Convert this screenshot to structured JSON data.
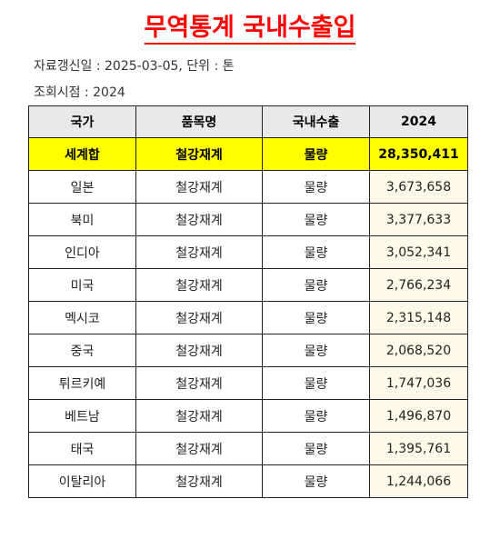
{
  "title": "무역통계 국내수출입",
  "meta": {
    "updated": "자료갱신일 : 2025-03-05, 단위 : 톤",
    "query_time": "조회시점 : 2024"
  },
  "table": {
    "headers": [
      "국가",
      "품목명",
      "국내수출",
      "2024"
    ],
    "total": {
      "country": "세계합",
      "item": "철강재계",
      "type": "물량",
      "value": "28,350,411"
    },
    "rows": [
      {
        "country": "일본",
        "item": "철강재계",
        "type": "물량",
        "value": "3,673,658"
      },
      {
        "country": "북미",
        "item": "철강재계",
        "type": "물량",
        "value": "3,377,633"
      },
      {
        "country": "인디아",
        "item": "철강재계",
        "type": "물량",
        "value": "3,052,341"
      },
      {
        "country": "미국",
        "item": "철강재계",
        "type": "물량",
        "value": "2,766,234"
      },
      {
        "country": "멕시코",
        "item": "철강재계",
        "type": "물량",
        "value": "2,315,148"
      },
      {
        "country": "중국",
        "item": "철강재계",
        "type": "물량",
        "value": "2,068,520"
      },
      {
        "country": "튀르키예",
        "item": "철강재계",
        "type": "물량",
        "value": "1,747,036"
      },
      {
        "country": "베트남",
        "item": "철강재계",
        "type": "물량",
        "value": "1,496,870"
      },
      {
        "country": "태국",
        "item": "철강재계",
        "type": "물량",
        "value": "1,395,761"
      },
      {
        "country": "이탈리아",
        "item": "철강재계",
        "type": "물량",
        "value": "1,244,066"
      }
    ]
  },
  "colors": {
    "title": "#ff0000",
    "header_bg": "#e9e9e9",
    "total_bg": "#ffff00",
    "value_bg": "#fdf9e8"
  }
}
